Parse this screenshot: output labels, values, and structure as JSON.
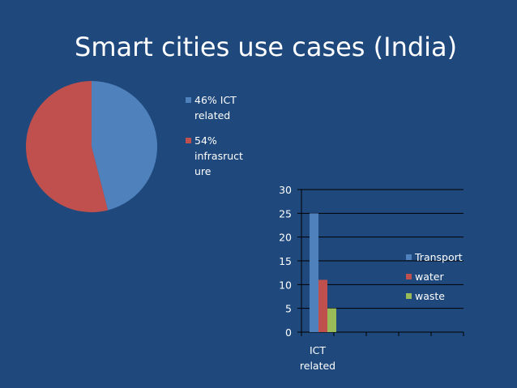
{
  "slide": {
    "title": "Smart cities use cases (India)",
    "background": "#1f497d"
  },
  "chart_data": [
    {
      "type": "pie",
      "title": "",
      "slices": [
        {
          "label_lines": [
            "46% ICT",
            "related"
          ],
          "value": 46,
          "color": "#4f81bd"
        },
        {
          "label_lines": [
            "54%",
            "infrasruct",
            "ure"
          ],
          "value": 54,
          "color": "#c0504d"
        }
      ],
      "legend_position": "right"
    },
    {
      "type": "bar",
      "title": "",
      "categories": [
        [
          "ICT",
          "related"
        ],
        [
          ""
        ],
        [
          ""
        ],
        [
          ""
        ],
        [
          ""
        ]
      ],
      "series": [
        {
          "name": "Transport",
          "color": "#4f81bd",
          "values": [
            25,
            null,
            null,
            null,
            null
          ]
        },
        {
          "name": "water",
          "color": "#c0504d",
          "values": [
            11,
            null,
            null,
            null,
            null
          ]
        },
        {
          "name": "waste",
          "color": "#9bbb59",
          "values": [
            5,
            null,
            null,
            null,
            null
          ]
        }
      ],
      "ylim": [
        0,
        30
      ],
      "yticks": [
        0,
        5,
        10,
        15,
        20,
        25,
        30
      ],
      "grid": true,
      "legend_position": "right"
    }
  ]
}
